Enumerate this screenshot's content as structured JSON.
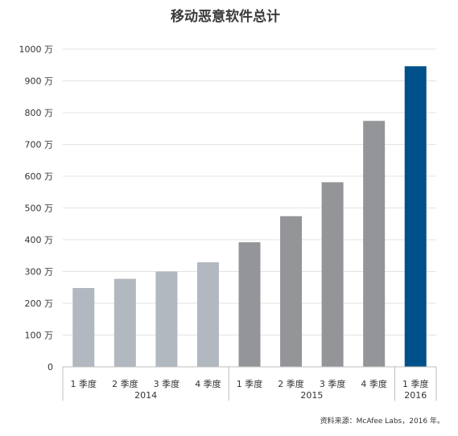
{
  "chart_data": {
    "type": "bar",
    "title": "移动恶意软件总计",
    "categories": [
      "1 季度",
      "2 季度",
      "3 季度",
      "4 季度",
      "1 季度",
      "2 季度",
      "3 季度",
      "4 季度",
      "1 季度"
    ],
    "groups": [
      {
        "label": "2014",
        "count": 4
      },
      {
        "label": "2015",
        "count": 4
      },
      {
        "label": "2016",
        "count": 1
      }
    ],
    "values": [
      2480000,
      2770000,
      3000000,
      3290000,
      3920000,
      4740000,
      5810000,
      7740000,
      9460000
    ],
    "ylim": [
      0,
      10000000
    ],
    "yticks": [
      "0",
      "100 万",
      "200 万",
      "300 万",
      "400 万",
      "500 万",
      "600 万",
      "700 万",
      "800 万",
      "900 万",
      "1000 万"
    ],
    "colors": {
      "2014": "#b2b8bf",
      "2015": "#939598",
      "2016": "#00508a"
    },
    "grid": true,
    "source": "资料来源：McAfee Labs，2016 年。"
  }
}
